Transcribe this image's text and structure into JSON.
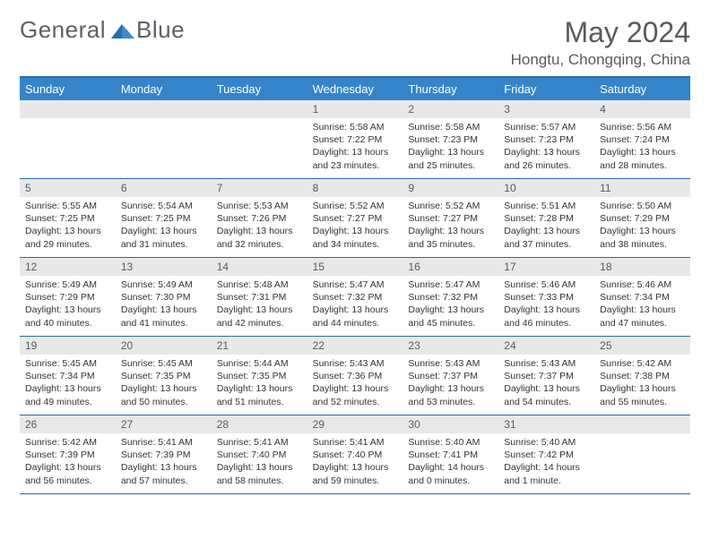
{
  "logo": {
    "text1": "General",
    "text2": "Blue"
  },
  "title": {
    "month": "May 2024",
    "location": "Hongtu, Chongqing, China"
  },
  "colors": {
    "header_bg": "#3584c8",
    "border": "#2b6aa8",
    "daynum_bg": "#e8e8e8",
    "text_muted": "#555b60"
  },
  "calendar": {
    "weekdays": [
      "Sunday",
      "Monday",
      "Tuesday",
      "Wednesday",
      "Thursday",
      "Friday",
      "Saturday"
    ],
    "first_weekday_index": 3,
    "days": [
      {
        "n": 1,
        "sunrise": "5:58 AM",
        "sunset": "7:22 PM",
        "daylight": "13 hours and 23 minutes."
      },
      {
        "n": 2,
        "sunrise": "5:58 AM",
        "sunset": "7:23 PM",
        "daylight": "13 hours and 25 minutes."
      },
      {
        "n": 3,
        "sunrise": "5:57 AM",
        "sunset": "7:23 PM",
        "daylight": "13 hours and 26 minutes."
      },
      {
        "n": 4,
        "sunrise": "5:56 AM",
        "sunset": "7:24 PM",
        "daylight": "13 hours and 28 minutes."
      },
      {
        "n": 5,
        "sunrise": "5:55 AM",
        "sunset": "7:25 PM",
        "daylight": "13 hours and 29 minutes."
      },
      {
        "n": 6,
        "sunrise": "5:54 AM",
        "sunset": "7:25 PM",
        "daylight": "13 hours and 31 minutes."
      },
      {
        "n": 7,
        "sunrise": "5:53 AM",
        "sunset": "7:26 PM",
        "daylight": "13 hours and 32 minutes."
      },
      {
        "n": 8,
        "sunrise": "5:52 AM",
        "sunset": "7:27 PM",
        "daylight": "13 hours and 34 minutes."
      },
      {
        "n": 9,
        "sunrise": "5:52 AM",
        "sunset": "7:27 PM",
        "daylight": "13 hours and 35 minutes."
      },
      {
        "n": 10,
        "sunrise": "5:51 AM",
        "sunset": "7:28 PM",
        "daylight": "13 hours and 37 minutes."
      },
      {
        "n": 11,
        "sunrise": "5:50 AM",
        "sunset": "7:29 PM",
        "daylight": "13 hours and 38 minutes."
      },
      {
        "n": 12,
        "sunrise": "5:49 AM",
        "sunset": "7:29 PM",
        "daylight": "13 hours and 40 minutes."
      },
      {
        "n": 13,
        "sunrise": "5:49 AM",
        "sunset": "7:30 PM",
        "daylight": "13 hours and 41 minutes."
      },
      {
        "n": 14,
        "sunrise": "5:48 AM",
        "sunset": "7:31 PM",
        "daylight": "13 hours and 42 minutes."
      },
      {
        "n": 15,
        "sunrise": "5:47 AM",
        "sunset": "7:32 PM",
        "daylight": "13 hours and 44 minutes."
      },
      {
        "n": 16,
        "sunrise": "5:47 AM",
        "sunset": "7:32 PM",
        "daylight": "13 hours and 45 minutes."
      },
      {
        "n": 17,
        "sunrise": "5:46 AM",
        "sunset": "7:33 PM",
        "daylight": "13 hours and 46 minutes."
      },
      {
        "n": 18,
        "sunrise": "5:46 AM",
        "sunset": "7:34 PM",
        "daylight": "13 hours and 47 minutes."
      },
      {
        "n": 19,
        "sunrise": "5:45 AM",
        "sunset": "7:34 PM",
        "daylight": "13 hours and 49 minutes."
      },
      {
        "n": 20,
        "sunrise": "5:45 AM",
        "sunset": "7:35 PM",
        "daylight": "13 hours and 50 minutes."
      },
      {
        "n": 21,
        "sunrise": "5:44 AM",
        "sunset": "7:35 PM",
        "daylight": "13 hours and 51 minutes."
      },
      {
        "n": 22,
        "sunrise": "5:43 AM",
        "sunset": "7:36 PM",
        "daylight": "13 hours and 52 minutes."
      },
      {
        "n": 23,
        "sunrise": "5:43 AM",
        "sunset": "7:37 PM",
        "daylight": "13 hours and 53 minutes."
      },
      {
        "n": 24,
        "sunrise": "5:43 AM",
        "sunset": "7:37 PM",
        "daylight": "13 hours and 54 minutes."
      },
      {
        "n": 25,
        "sunrise": "5:42 AM",
        "sunset": "7:38 PM",
        "daylight": "13 hours and 55 minutes."
      },
      {
        "n": 26,
        "sunrise": "5:42 AM",
        "sunset": "7:39 PM",
        "daylight": "13 hours and 56 minutes."
      },
      {
        "n": 27,
        "sunrise": "5:41 AM",
        "sunset": "7:39 PM",
        "daylight": "13 hours and 57 minutes."
      },
      {
        "n": 28,
        "sunrise": "5:41 AM",
        "sunset": "7:40 PM",
        "daylight": "13 hours and 58 minutes."
      },
      {
        "n": 29,
        "sunrise": "5:41 AM",
        "sunset": "7:40 PM",
        "daylight": "13 hours and 59 minutes."
      },
      {
        "n": 30,
        "sunrise": "5:40 AM",
        "sunset": "7:41 PM",
        "daylight": "14 hours and 0 minutes."
      },
      {
        "n": 31,
        "sunrise": "5:40 AM",
        "sunset": "7:42 PM",
        "daylight": "14 hours and 1 minute."
      }
    ],
    "labels": {
      "sunrise": "Sunrise:",
      "sunset": "Sunset:",
      "daylight": "Daylight:"
    }
  }
}
